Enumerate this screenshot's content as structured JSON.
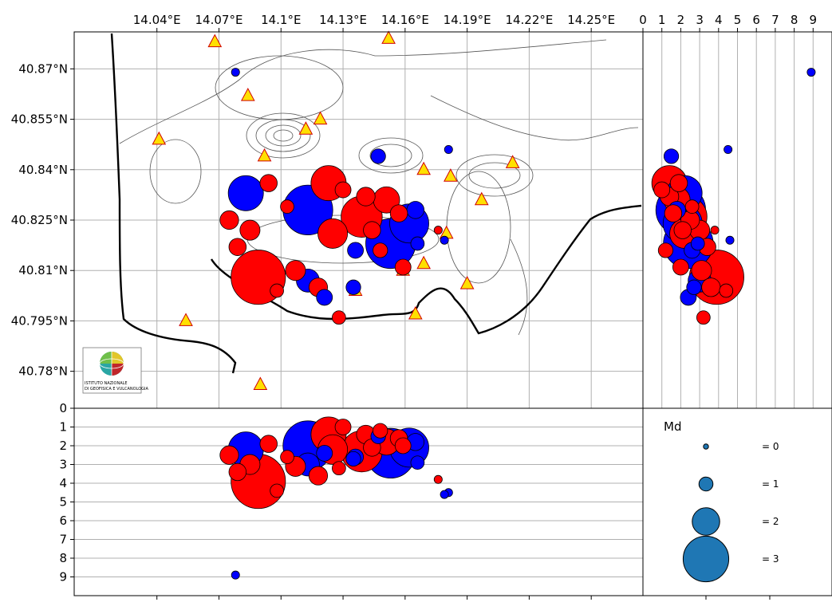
{
  "colors": {
    "blue": "#0000ff",
    "red": "#ff0000",
    "station_fill": "#ffe000",
    "station_edge": "#d00000",
    "legend_marker": "#1f77b4",
    "grid": "#b0b0b0"
  },
  "chart_data": [
    {
      "type": "scatter",
      "panel": "map",
      "x_ticks": [
        "14.04°E",
        "14.07°E",
        "14.1°E",
        "14.13°E",
        "14.16°E",
        "14.19°E",
        "14.22°E",
        "14.25°E"
      ],
      "y_ticks": [
        "40.87°N",
        "40.855°N",
        "40.84°N",
        "40.825°N",
        "40.81°N",
        "40.795°N",
        "40.78°N"
      ],
      "xlim": [
        14.0,
        14.275
      ],
      "ylim": [
        40.769,
        40.881
      ],
      "grid": true,
      "logo": {
        "icon": "ingv-globe-icon",
        "line1": "ISTITUTO NAZIONALE",
        "line2": "DI GEOFISICA E VULCANOLOGIA"
      },
      "stations": [
        {
          "lon": 14.068,
          "lat": 40.878
        },
        {
          "lon": 14.152,
          "lat": 40.879
        },
        {
          "lon": 14.084,
          "lat": 40.862
        },
        {
          "lon": 14.119,
          "lat": 40.855
        },
        {
          "lon": 14.112,
          "lat": 40.852
        },
        {
          "lon": 14.041,
          "lat": 40.849
        },
        {
          "lon": 14.092,
          "lat": 40.844
        },
        {
          "lon": 14.169,
          "lat": 40.84
        },
        {
          "lon": 14.182,
          "lat": 40.838
        },
        {
          "lon": 14.212,
          "lat": 40.842
        },
        {
          "lon": 14.197,
          "lat": 40.831
        },
        {
          "lon": 14.18,
          "lat": 40.821
        },
        {
          "lon": 14.084,
          "lat": 40.811
        },
        {
          "lon": 14.169,
          "lat": 40.812
        },
        {
          "lon": 14.159,
          "lat": 40.81
        },
        {
          "lon": 14.136,
          "lat": 40.804
        },
        {
          "lon": 14.19,
          "lat": 40.806
        },
        {
          "lon": 14.054,
          "lat": 40.795
        },
        {
          "lon": 14.165,
          "lat": 40.797
        },
        {
          "lon": 14.09,
          "lat": 40.776
        }
      ],
      "events": [
        {
          "lon": 14.078,
          "lat": 40.869,
          "depth": 8.9,
          "md": 0.4,
          "color": "blue"
        },
        {
          "lon": 14.181,
          "lat": 40.846,
          "depth": 4.5,
          "md": 0.4,
          "color": "blue"
        },
        {
          "lon": 14.147,
          "lat": 40.844,
          "depth": 1.5,
          "md": 1.0,
          "color": "blue"
        },
        {
          "lon": 14.113,
          "lat": 40.828,
          "depth": 2.0,
          "md": 3.0,
          "color": "blue"
        },
        {
          "lon": 14.123,
          "lat": 40.836,
          "depth": 1.4,
          "md": 2.3,
          "color": "red"
        },
        {
          "lon": 14.139,
          "lat": 40.826,
          "depth": 2.3,
          "md": 2.6,
          "color": "red"
        },
        {
          "lon": 14.125,
          "lat": 40.821,
          "depth": 2.2,
          "md": 2.0,
          "color": "red"
        },
        {
          "lon": 14.151,
          "lat": 40.831,
          "depth": 1.8,
          "md": 1.8,
          "color": "red"
        },
        {
          "lon": 14.153,
          "lat": 40.818,
          "depth": 2.4,
          "md": 3.0,
          "color": "blue"
        },
        {
          "lon": 14.162,
          "lat": 40.824,
          "depth": 2.1,
          "md": 2.5,
          "color": "blue"
        },
        {
          "lon": 14.089,
          "lat": 40.808,
          "depth": 3.9,
          "md": 3.2,
          "color": "red"
        },
        {
          "lon": 14.085,
          "lat": 40.822,
          "depth": 3.0,
          "md": 1.4,
          "color": "red"
        },
        {
          "lon": 14.083,
          "lat": 40.833,
          "depth": 2.2,
          "md": 2.3,
          "color": "blue"
        },
        {
          "lon": 14.094,
          "lat": 40.836,
          "depth": 1.9,
          "md": 1.2,
          "color": "red"
        },
        {
          "lon": 14.075,
          "lat": 40.825,
          "depth": 2.5,
          "md": 1.3,
          "color": "red"
        },
        {
          "lon": 14.079,
          "lat": 40.817,
          "depth": 3.4,
          "md": 1.2,
          "color": "red"
        },
        {
          "lon": 14.113,
          "lat": 40.807,
          "depth": 3.0,
          "md": 1.6,
          "color": "blue"
        },
        {
          "lon": 14.118,
          "lat": 40.805,
          "depth": 3.6,
          "md": 1.3,
          "color": "red"
        },
        {
          "lon": 14.107,
          "lat": 40.81,
          "depth": 3.1,
          "md": 1.4,
          "color": "red"
        },
        {
          "lon": 14.128,
          "lat": 40.796,
          "depth": 3.2,
          "md": 0.9,
          "color": "red"
        },
        {
          "lon": 14.135,
          "lat": 40.805,
          "depth": 2.7,
          "md": 1.0,
          "color": "blue"
        },
        {
          "lon": 14.159,
          "lat": 40.811,
          "depth": 2.0,
          "md": 1.1,
          "color": "red"
        },
        {
          "lon": 14.165,
          "lat": 40.828,
          "depth": 1.8,
          "md": 1.2,
          "color": "blue"
        },
        {
          "lon": 14.166,
          "lat": 40.818,
          "depth": 2.9,
          "md": 0.9,
          "color": "blue"
        },
        {
          "lon": 14.121,
          "lat": 40.802,
          "depth": 2.4,
          "md": 1.1,
          "color": "blue"
        },
        {
          "lon": 14.103,
          "lat": 40.829,
          "depth": 2.6,
          "md": 0.9,
          "color": "red"
        },
        {
          "lon": 14.148,
          "lat": 40.816,
          "depth": 1.2,
          "md": 1.0,
          "color": "red"
        },
        {
          "lon": 14.179,
          "lat": 40.819,
          "depth": 4.6,
          "md": 0.4,
          "color": "blue"
        },
        {
          "lon": 14.176,
          "lat": 40.822,
          "depth": 3.8,
          "md": 0.4,
          "color": "red"
        },
        {
          "lon": 14.13,
          "lat": 40.834,
          "depth": 1.0,
          "md": 1.1,
          "color": "red"
        },
        {
          "lon": 14.141,
          "lat": 40.832,
          "depth": 1.4,
          "md": 1.3,
          "color": "red"
        },
        {
          "lon": 14.144,
          "lat": 40.822,
          "depth": 2.1,
          "md": 1.2,
          "color": "red"
        },
        {
          "lon": 14.136,
          "lat": 40.816,
          "depth": 2.6,
          "md": 1.1,
          "color": "blue"
        },
        {
          "lon": 14.157,
          "lat": 40.827,
          "depth": 1.6,
          "md": 1.2,
          "color": "red"
        },
        {
          "lon": 14.098,
          "lat": 40.804,
          "depth": 4.4,
          "md": 0.9,
          "color": "red"
        }
      ]
    },
    {
      "type": "scatter",
      "panel": "depth-vs-latitude",
      "x_ticks": [
        "0",
        "1",
        "2",
        "3",
        "4",
        "5",
        "6",
        "7",
        "8",
        "9"
      ],
      "xlim": [
        0,
        10
      ],
      "grid": true
    },
    {
      "type": "scatter",
      "panel": "depth-vs-longitude",
      "y_ticks": [
        "0",
        "1",
        "2",
        "3",
        "4",
        "5",
        "6",
        "7",
        "8",
        "9"
      ],
      "ylim": [
        0,
        10
      ],
      "grid": true
    },
    {
      "type": "legend",
      "panel": "magnitude-legend",
      "title": "Md",
      "entries": [
        {
          "label": "= 0",
          "md": 0
        },
        {
          "label": "= 1",
          "md": 1
        },
        {
          "label": "= 2",
          "md": 2
        },
        {
          "label": "= 3",
          "md": 3
        }
      ]
    }
  ]
}
